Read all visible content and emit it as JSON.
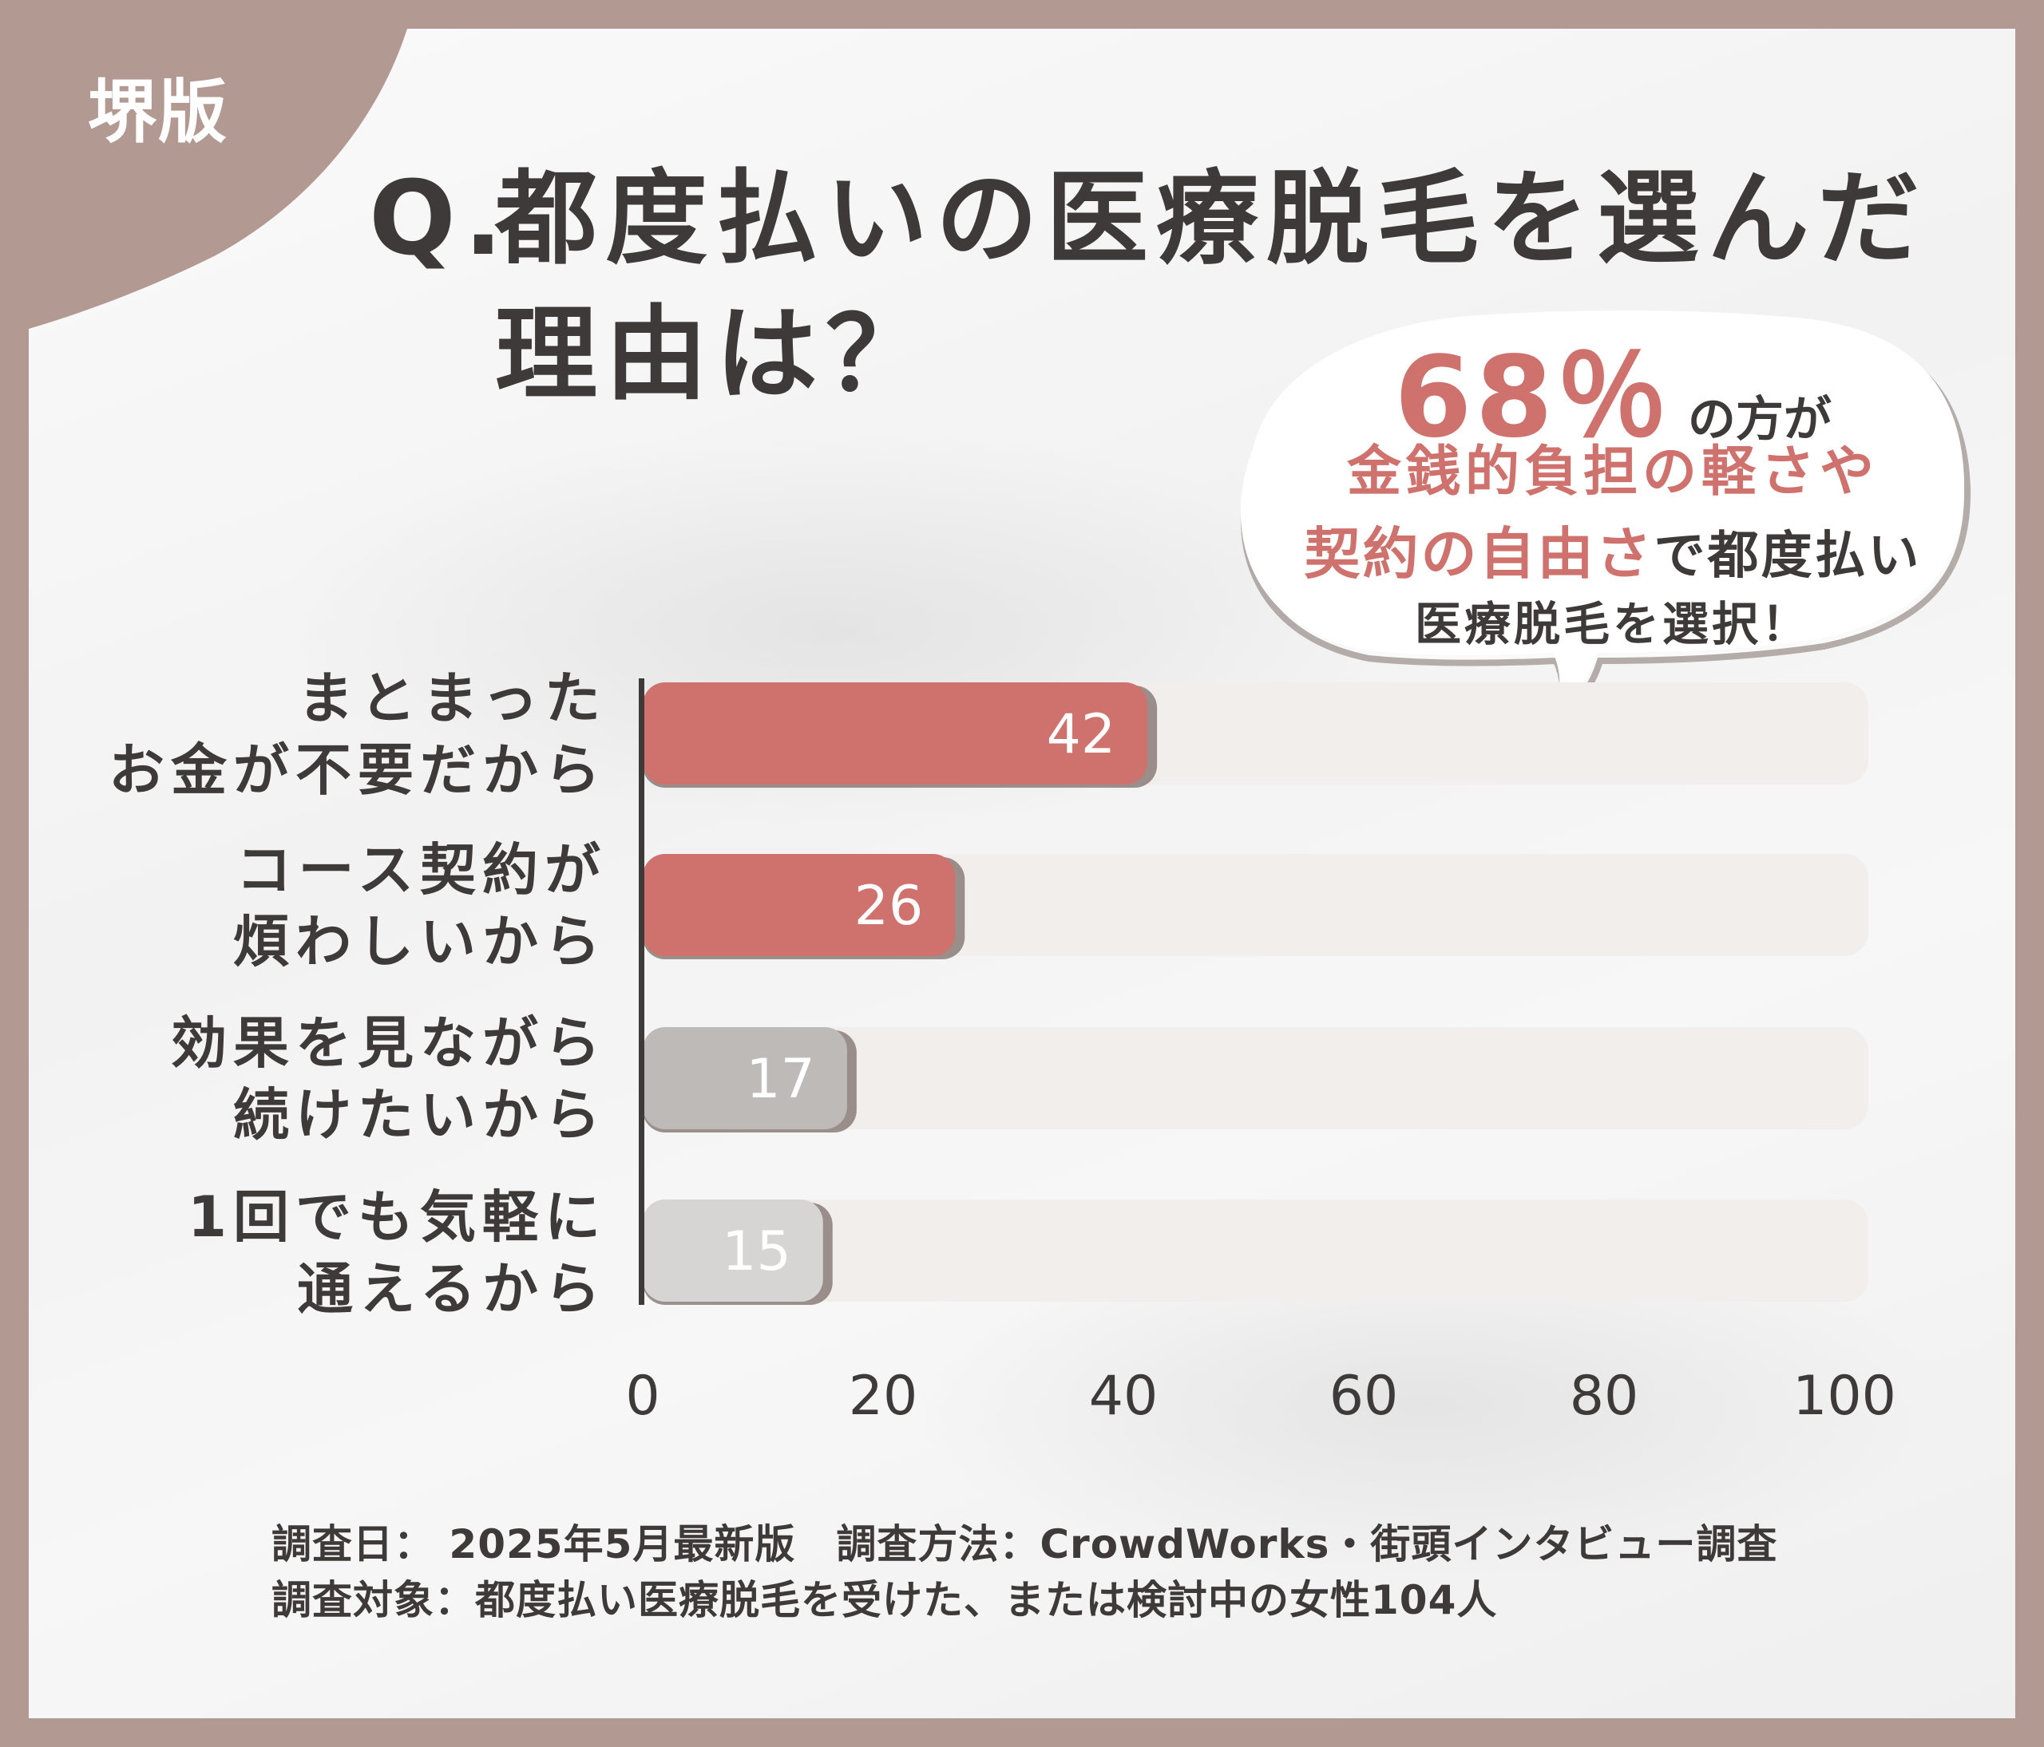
{
  "badge": "堺版",
  "title": {
    "q": "Q.",
    "line1": "都度払いの医療脱毛を選んだ",
    "line2": "理由は？"
  },
  "callout": {
    "percent": "68％",
    "percent_suffix": "の方が",
    "line2": "金銭的負担の軽さや",
    "line3_red": "契約の自由さ",
    "line3_rest": "で都度払い",
    "line4": "医療脱毛を選択！"
  },
  "categories": [
    {
      "line1": "まとまった",
      "line2": "お金が不要だから"
    },
    {
      "line1": "コース契約が",
      "line2": "煩わしいから"
    },
    {
      "line1": "効果を見ながら",
      "line2": "続けたいから"
    },
    {
      "line1": "1回でも気軽に",
      "line2": "通えるから"
    }
  ],
  "chart_data": {
    "type": "bar",
    "orientation": "horizontal",
    "categories": [
      "まとまったお金が不要だから",
      "コース契約が煩わしいから",
      "効果を見ながら続けたいから",
      "1回でも気軽に通えるから"
    ],
    "values": [
      42,
      26,
      17,
      15
    ],
    "xlim": [
      0,
      100
    ],
    "xticks": [
      "0",
      "20",
      "40",
      "60",
      "80",
      "100"
    ],
    "bar_colors": [
      "#cf716d",
      "#cf716d",
      "#bdbab8",
      "#d7d5d4"
    ],
    "track_color": "#f1eeec"
  },
  "footer": {
    "line1": "調査日： 2025年5月最新版　調査方法：CrowdWorks・街頭インタビュー調査",
    "line2": "調査対象：都度払い医療脱毛を受けた、または検討中の女性104人"
  }
}
